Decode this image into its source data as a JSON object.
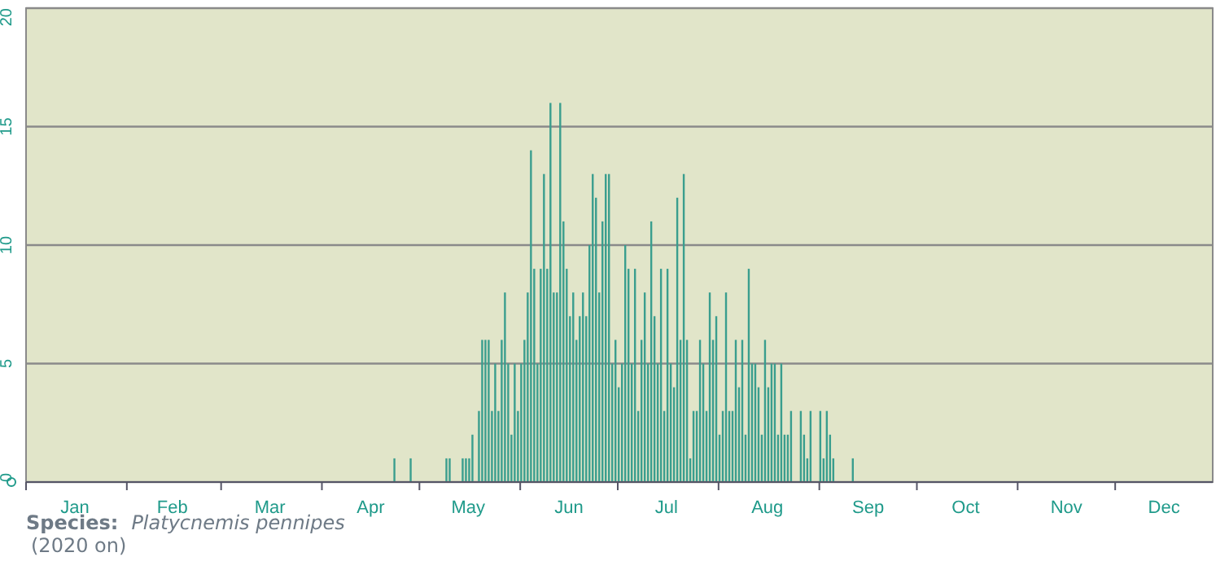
{
  "chart_data": {
    "type": "bar",
    "color": "#3a9e8e",
    "grid": "y",
    "x": [
      "--04-23",
      "--04-28",
      "--05-09",
      "--05-10",
      "--05-14",
      "--05-15",
      "--05-16",
      "--05-17",
      "--05-19",
      "--05-20",
      "--05-21",
      "--05-22",
      "--05-23",
      "--05-24",
      "--05-25",
      "--05-26",
      "--05-27",
      "--05-28",
      "--05-29",
      "--05-30",
      "--05-31",
      "--06-01",
      "--06-02",
      "--06-03",
      "--06-04",
      "--06-05",
      "--06-06",
      "--06-07",
      "--06-08",
      "--06-09",
      "--06-10",
      "--06-11",
      "--06-12",
      "--06-13",
      "--06-14",
      "--06-15",
      "--06-16",
      "--06-17",
      "--06-18",
      "--06-19",
      "--06-20",
      "--06-21",
      "--06-22",
      "--06-23",
      "--06-24",
      "--06-25",
      "--06-26",
      "--06-27",
      "--06-28",
      "--06-29",
      "--06-30",
      "--07-01",
      "--07-02",
      "--07-03",
      "--07-04",
      "--07-05",
      "--07-06",
      "--07-07",
      "--07-08",
      "--07-09",
      "--07-10",
      "--07-11",
      "--07-12",
      "--07-13",
      "--07-14",
      "--07-15",
      "--07-16",
      "--07-17",
      "--07-18",
      "--07-19",
      "--07-20",
      "--07-21",
      "--07-22",
      "--07-23",
      "--07-24",
      "--07-25",
      "--07-26",
      "--07-27",
      "--07-28",
      "--07-29",
      "--07-30",
      "--07-31",
      "--08-01",
      "--08-02",
      "--08-03",
      "--08-04",
      "--08-05",
      "--08-06",
      "--08-07",
      "--08-08",
      "--08-09",
      "--08-10",
      "--08-11",
      "--08-12",
      "--08-13",
      "--08-14",
      "--08-15",
      "--08-16",
      "--08-17",
      "--08-18",
      "--08-19",
      "--08-20",
      "--08-21",
      "--08-22",
      "--08-23",
      "--08-26",
      "--08-27",
      "--08-28",
      "--08-29",
      "--09-01",
      "--09-02",
      "--09-03",
      "--09-04",
      "--09-05",
      "--09-11"
    ],
    "values": [
      1,
      1,
      1,
      1,
      1,
      1,
      1,
      2,
      3,
      6,
      6,
      6,
      3,
      5,
      3,
      6,
      8,
      5,
      2,
      5,
      3,
      5,
      6,
      8,
      14,
      9,
      5,
      9,
      13,
      9,
      16,
      8,
      8,
      16,
      11,
      9,
      7,
      8,
      6,
      7,
      8,
      7,
      10,
      13,
      12,
      8,
      11,
      13,
      13,
      5,
      6,
      4,
      5,
      10,
      9,
      5,
      9,
      3,
      6,
      8,
      5,
      11,
      7,
      5,
      9,
      3,
      9,
      5,
      4,
      12,
      6,
      13,
      6,
      1,
      3,
      3,
      6,
      5,
      3,
      8,
      6,
      7,
      2,
      3,
      8,
      3,
      3,
      6,
      4,
      6,
      2,
      9,
      5,
      5,
      4,
      2,
      6,
      4,
      5,
      5,
      2,
      5,
      2,
      2,
      3,
      3,
      2,
      1,
      3,
      3,
      1,
      3,
      2,
      1,
      1
    ],
    "xlim": [
      "--01-01",
      "--12-31"
    ],
    "xticks": [
      {
        "value": "--01-01",
        "label": null
      },
      {
        "value": "--01-16",
        "label": "Jan"
      },
      {
        "value": "--02-01",
        "label": null
      },
      {
        "value": "--02-15",
        "label": "Feb"
      },
      {
        "value": "--03-01",
        "label": null
      },
      {
        "value": "--03-16",
        "label": "Mar"
      },
      {
        "value": "--04-01",
        "label": null
      },
      {
        "value": "--04-16",
        "label": "Apr"
      },
      {
        "value": "--05-01",
        "label": null
      },
      {
        "value": "--05-16",
        "label": "May"
      },
      {
        "value": "--06-01",
        "label": null
      },
      {
        "value": "--06-16",
        "label": "Jun"
      },
      {
        "value": "--07-01",
        "label": null
      },
      {
        "value": "--07-16",
        "label": "Jul"
      },
      {
        "value": "--08-01",
        "label": null
      },
      {
        "value": "--08-16",
        "label": "Aug"
      },
      {
        "value": "--09-01",
        "label": null
      },
      {
        "value": "--09-16",
        "label": "Sep"
      },
      {
        "value": "--10-01",
        "label": null
      },
      {
        "value": "--10-16",
        "label": "Oct"
      },
      {
        "value": "--11-01",
        "label": null
      },
      {
        "value": "--11-16",
        "label": "Nov"
      },
      {
        "value": "--12-01",
        "label": null
      },
      {
        "value": "--12-16",
        "label": "Dec"
      }
    ],
    "ylim": [
      0,
      20
    ],
    "yticks": [
      0,
      5,
      10,
      15,
      20
    ],
    "annotations": [
      "Species:",
      "Platycnemis pennipes",
      "(2020 on)"
    ]
  }
}
